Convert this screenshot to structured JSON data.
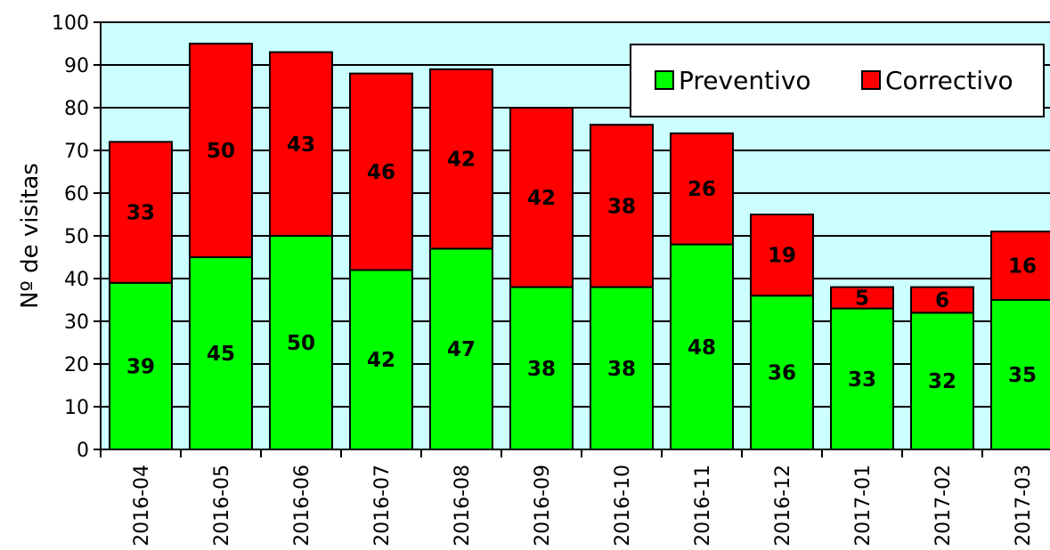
{
  "chart_data": {
    "type": "bar",
    "stacked": true,
    "title": "",
    "xlabel": "",
    "ylabel": "Nº de visitas",
    "ylim": [
      0,
      100
    ],
    "yticks": [
      0,
      10,
      20,
      30,
      40,
      50,
      60,
      70,
      80,
      90,
      100
    ],
    "grid": true,
    "legend_position": "top-right",
    "categories": [
      "2016-04",
      "2016-05",
      "2016-06",
      "2016-07",
      "2016-08",
      "2016-09",
      "2016-10",
      "2016-11",
      "2016-12",
      "2017-01",
      "2017-02",
      "2017-03"
    ],
    "series": [
      {
        "name": "Preventivo",
        "color": "#00ff00",
        "values": [
          39,
          45,
          50,
          42,
          47,
          38,
          38,
          48,
          36,
          33,
          32,
          35
        ]
      },
      {
        "name": "Correctivo",
        "color": "#ff0000",
        "values": [
          33,
          50,
          43,
          46,
          42,
          42,
          38,
          26,
          19,
          5,
          6,
          16
        ]
      }
    ],
    "plot_background": "#ccffff"
  }
}
